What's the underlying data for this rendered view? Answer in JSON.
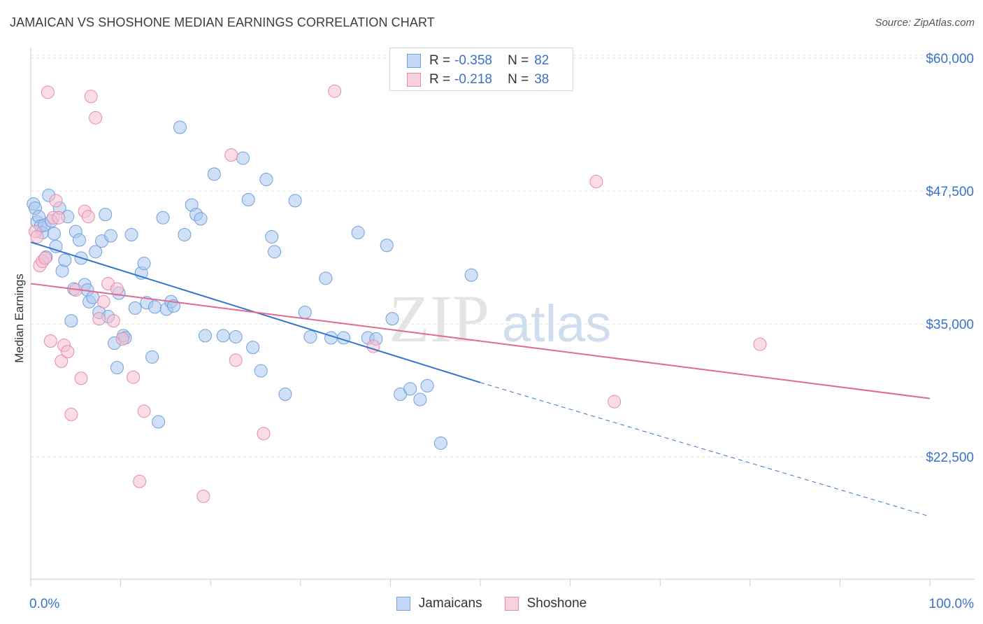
{
  "header": {
    "title": "JAMAICAN VS SHOSHONE MEDIAN EARNINGS CORRELATION CHART",
    "source": "Source: ZipAtlas.com"
  },
  "watermark": {
    "zip": "ZIP",
    "atlas": "atlas"
  },
  "legend": {
    "items": [
      {
        "r_label": "R =",
        "r_value": "-0.358",
        "n_label": "N =",
        "n_value": "82"
      },
      {
        "r_label": "R =",
        "r_value": "-0.218",
        "n_label": "N =",
        "n_value": "38"
      }
    ],
    "series_names": [
      "Jamaicans",
      "Shoshone"
    ]
  },
  "colors": {
    "jamaicans_fill": "#a9c8f0",
    "jamaicans_stroke": "#6f9fdc",
    "jamaicans_line": "#3373cc",
    "shoshone_fill": "#f6bfd0",
    "shoshone_stroke": "#e88aa8",
    "shoshone_line": "#e06a92",
    "tick_label": "#3a72c8",
    "grid": "#e3e3e3"
  },
  "chart_data": {
    "type": "scatter",
    "title": "JAMAICAN VS SHOSHONE MEDIAN EARNINGS CORRELATION CHART",
    "xlabel": "",
    "ylabel": "Median Earnings",
    "xlim": [
      0,
      100
    ],
    "ylim": [
      11000,
      61000
    ],
    "x_tick_labels": [
      "0.0%",
      "100.0%"
    ],
    "y_ticks": [
      22500,
      35000,
      47500,
      60000
    ],
    "y_tick_labels": [
      "$22,500",
      "$35,000",
      "$47,500",
      "$60,000"
    ],
    "grid": true,
    "legend_position": "top-center",
    "series": [
      {
        "name": "Jamaicans",
        "points": [
          [
            0.3,
            46300
          ],
          [
            0.5,
            45900
          ],
          [
            0.7,
            44600
          ],
          [
            0.9,
            45100
          ],
          [
            1.1,
            44200
          ],
          [
            1.3,
            43600
          ],
          [
            1.5,
            44300
          ],
          [
            1.7,
            41300
          ],
          [
            2.0,
            47100
          ],
          [
            2.3,
            44700
          ],
          [
            2.6,
            43500
          ],
          [
            2.8,
            42300
          ],
          [
            3.2,
            45900
          ],
          [
            3.5,
            40000
          ],
          [
            3.8,
            41000
          ],
          [
            4.1,
            45100
          ],
          [
            4.5,
            35300
          ],
          [
            4.8,
            38300
          ],
          [
            5.0,
            43700
          ],
          [
            5.4,
            42900
          ],
          [
            5.6,
            41200
          ],
          [
            6.0,
            38700
          ],
          [
            6.3,
            38200
          ],
          [
            6.5,
            37100
          ],
          [
            6.9,
            37500
          ],
          [
            7.2,
            41800
          ],
          [
            7.6,
            36100
          ],
          [
            7.9,
            42800
          ],
          [
            8.3,
            45300
          ],
          [
            8.6,
            35700
          ],
          [
            8.9,
            43300
          ],
          [
            9.3,
            33200
          ],
          [
            9.6,
            30900
          ],
          [
            9.8,
            37900
          ],
          [
            10.3,
            33900
          ],
          [
            10.5,
            33700
          ],
          [
            11.2,
            43400
          ],
          [
            11.6,
            36500
          ],
          [
            12.3,
            39800
          ],
          [
            12.6,
            40700
          ],
          [
            12.9,
            37000
          ],
          [
            13.5,
            31900
          ],
          [
            13.8,
            36600
          ],
          [
            14.2,
            25800
          ],
          [
            14.7,
            45000
          ],
          [
            15.1,
            36400
          ],
          [
            15.6,
            37100
          ],
          [
            15.9,
            36700
          ],
          [
            16.6,
            53500
          ],
          [
            17.1,
            43400
          ],
          [
            17.9,
            46200
          ],
          [
            18.4,
            45300
          ],
          [
            18.9,
            44900
          ],
          [
            19.4,
            33900
          ],
          [
            20.4,
            49100
          ],
          [
            21.4,
            33900
          ],
          [
            22.8,
            33800
          ],
          [
            23.6,
            50600
          ],
          [
            24.2,
            46700
          ],
          [
            24.7,
            32800
          ],
          [
            25.6,
            30600
          ],
          [
            26.2,
            48600
          ],
          [
            26.8,
            43200
          ],
          [
            27.1,
            41800
          ],
          [
            28.3,
            28400
          ],
          [
            29.4,
            46600
          ],
          [
            30.5,
            36100
          ],
          [
            31.1,
            33800
          ],
          [
            32.8,
            39300
          ],
          [
            33.4,
            33700
          ],
          [
            34.8,
            33700
          ],
          [
            36.4,
            43600
          ],
          [
            37.5,
            33700
          ],
          [
            38.4,
            33600
          ],
          [
            39.6,
            42400
          ],
          [
            40.2,
            35500
          ],
          [
            41.1,
            28400
          ],
          [
            42.2,
            28900
          ],
          [
            43.3,
            27900
          ],
          [
            44.1,
            29200
          ],
          [
            45.6,
            23800
          ],
          [
            49.0,
            39600
          ]
        ]
      },
      {
        "name": "Shoshone",
        "points": [
          [
            0.5,
            43700
          ],
          [
            0.7,
            43200
          ],
          [
            1.0,
            40500
          ],
          [
            1.3,
            40900
          ],
          [
            1.6,
            41200
          ],
          [
            1.9,
            56800
          ],
          [
            2.2,
            33400
          ],
          [
            2.5,
            45000
          ],
          [
            2.8,
            46600
          ],
          [
            3.1,
            45000
          ],
          [
            3.4,
            31500
          ],
          [
            3.7,
            33000
          ],
          [
            4.1,
            32400
          ],
          [
            4.5,
            26500
          ],
          [
            5.0,
            38200
          ],
          [
            5.6,
            29900
          ],
          [
            6.0,
            45600
          ],
          [
            6.4,
            45100
          ],
          [
            6.7,
            56400
          ],
          [
            7.2,
            54400
          ],
          [
            7.6,
            35500
          ],
          [
            8.1,
            37100
          ],
          [
            8.6,
            38800
          ],
          [
            9.2,
            35300
          ],
          [
            9.6,
            38300
          ],
          [
            10.2,
            33600
          ],
          [
            11.4,
            30000
          ],
          [
            12.1,
            20200
          ],
          [
            12.6,
            26800
          ],
          [
            19.2,
            18800
          ],
          [
            22.3,
            50900
          ],
          [
            22.8,
            31600
          ],
          [
            25.9,
            24700
          ],
          [
            33.8,
            56900
          ],
          [
            38.1,
            32900
          ],
          [
            62.9,
            48400
          ],
          [
            64.9,
            27700
          ],
          [
            81.1,
            33100
          ]
        ]
      }
    ],
    "trend_lines": [
      {
        "name": "Jamaicans",
        "x": [
          0,
          50
        ],
        "y": [
          42700,
          29500
        ],
        "dashed_extension_to": [
          100,
          16900
        ]
      },
      {
        "name": "Shoshone",
        "x": [
          0,
          100
        ],
        "y": [
          38800,
          28000
        ]
      }
    ]
  }
}
